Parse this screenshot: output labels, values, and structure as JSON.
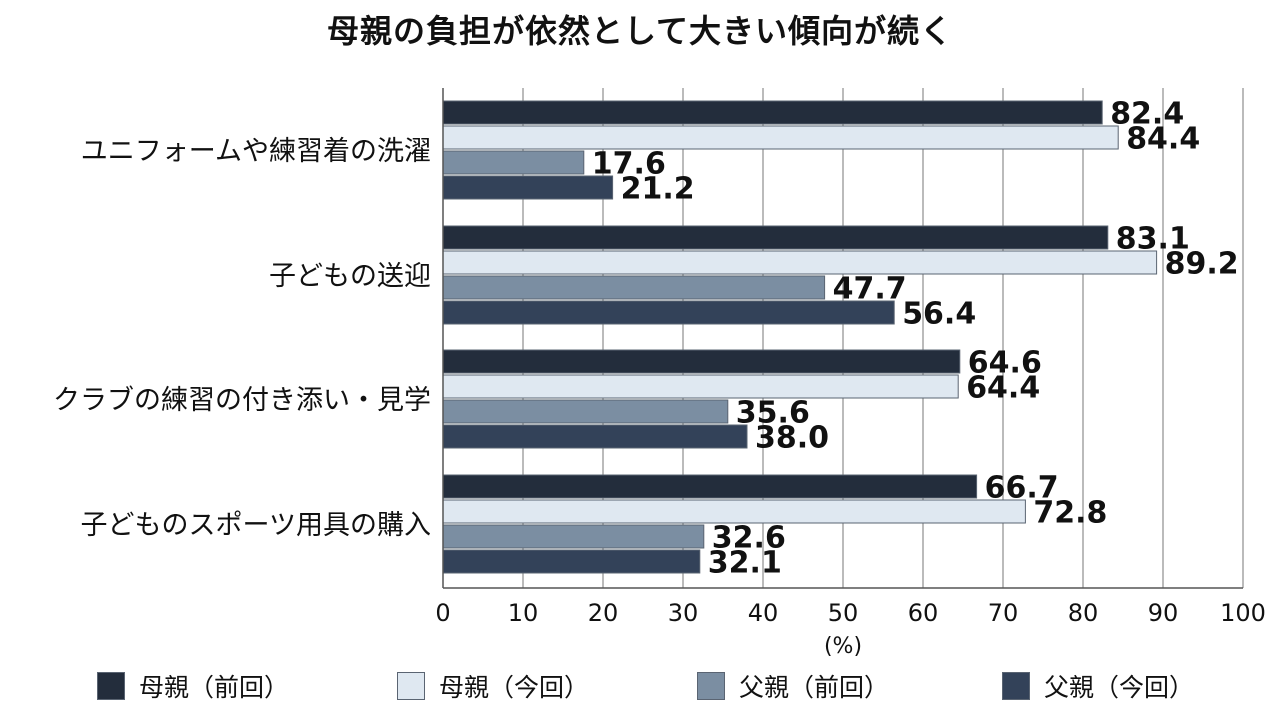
{
  "chart_data": {
    "type": "bar",
    "orientation": "horizontal",
    "title": "母親の負担が依然として大きい傾向が続く",
    "categories": [
      "ユニフォームや練習着の洗濯",
      "子どもの送迎",
      "クラブの練習の付き添い・見学",
      "子どものスポーツ用具の購入"
    ],
    "series": [
      {
        "name": "母親（前回）",
        "color": "#232d3c",
        "values": [
          "82.4",
          "83.1",
          "64.6",
          "66.7"
        ]
      },
      {
        "name": "母親（今回）",
        "color": "#dfe8f1",
        "values": [
          "84.4",
          "89.2",
          "64.4",
          "72.8"
        ]
      },
      {
        "name": "父親（前回）",
        "color": "#7b8ea2",
        "values": [
          "17.6",
          "47.7",
          "35.6",
          "32.6"
        ]
      },
      {
        "name": "父親（今回）",
        "color": "#334259",
        "values": [
          "21.2",
          "56.4",
          "38.0",
          "32.1"
        ]
      }
    ],
    "xlim": [
      0,
      100
    ],
    "xticks": [
      "0",
      "10",
      "20",
      "30",
      "40",
      "50",
      "60",
      "70",
      "80",
      "90",
      "100"
    ],
    "xlabel": "(%)",
    "grid": true,
    "legend_position": "bottom"
  }
}
